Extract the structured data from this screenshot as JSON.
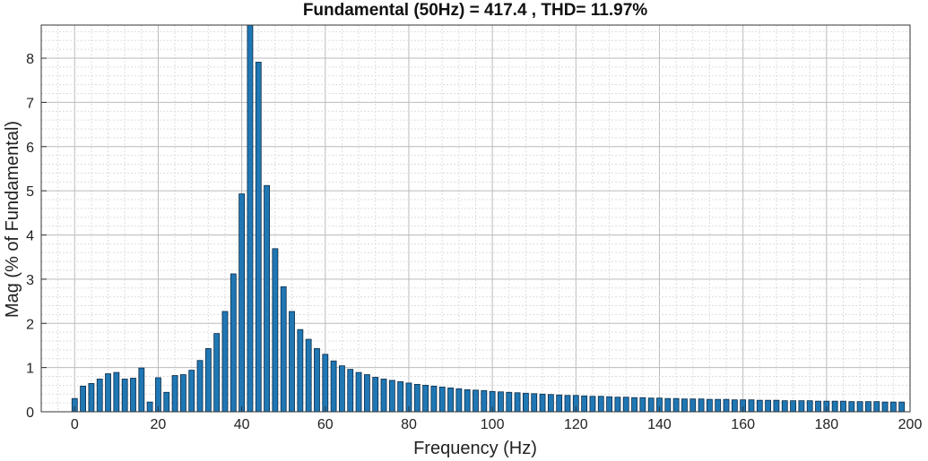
{
  "chart_data": {
    "type": "bar",
    "title": "Fundamental (50Hz) = 417.4 , THD= 11.97%",
    "xlabel": "Frequency (Hz)",
    "ylabel": "Mag (% of Fundamental)",
    "xlim": [
      -8,
      200
    ],
    "ylim": [
      0,
      8.75
    ],
    "xticks": [
      "0",
      "20",
      "40",
      "60",
      "80",
      "100",
      "120",
      "140",
      "160",
      "180",
      "200"
    ],
    "yticks": [
      "0",
      "1",
      "2",
      "3",
      "4",
      "5",
      "6",
      "7",
      "8"
    ],
    "grid": "major and minor, dotted",
    "bar_color": "#1f77b4",
    "x": [
      0,
      2,
      4,
      6,
      8,
      10,
      12,
      14,
      16,
      18,
      20,
      22,
      24,
      26,
      28,
      30,
      32,
      34,
      36,
      38,
      40,
      42,
      44,
      46,
      48,
      50,
      52,
      54,
      56,
      58,
      60,
      62,
      64,
      66,
      68,
      70,
      72,
      74,
      76,
      78,
      80,
      82,
      84,
      86,
      88,
      90,
      92,
      94,
      96,
      98,
      100,
      102,
      104,
      106,
      108,
      110,
      112,
      114,
      116,
      118,
      120,
      122,
      124,
      126,
      128,
      130,
      132,
      134,
      136,
      138,
      140,
      142,
      144,
      146,
      148,
      150,
      152,
      154,
      156,
      158,
      160,
      162,
      164,
      166,
      168,
      170,
      172,
      174,
      176,
      178,
      180,
      182,
      184,
      186,
      188,
      190,
      192,
      194,
      196,
      198
    ],
    "values": [
      0.3,
      0.58,
      0.64,
      0.74,
      0.86,
      0.89,
      0.74,
      0.76,
      0.99,
      0.22,
      0.77,
      0.44,
      0.82,
      0.84,
      0.94,
      1.16,
      1.43,
      1.77,
      2.27,
      3.12,
      4.93,
      8.75,
      7.91,
      5.12,
      3.69,
      2.83,
      2.27,
      1.86,
      1.64,
      1.43,
      1.3,
      1.15,
      1.04,
      0.96,
      0.89,
      0.84,
      0.78,
      0.74,
      0.71,
      0.68,
      0.65,
      0.62,
      0.6,
      0.58,
      0.56,
      0.54,
      0.52,
      0.5,
      0.49,
      0.48,
      0.46,
      0.45,
      0.44,
      0.43,
      0.42,
      0.41,
      0.4,
      0.39,
      0.38,
      0.37,
      0.37,
      0.36,
      0.35,
      0.35,
      0.34,
      0.33,
      0.33,
      0.32,
      0.32,
      0.31,
      0.31,
      0.3,
      0.3,
      0.29,
      0.29,
      0.29,
      0.28,
      0.28,
      0.28,
      0.27,
      0.27,
      0.27,
      0.26,
      0.26,
      0.26,
      0.25,
      0.25,
      0.25,
      0.25,
      0.24,
      0.24,
      0.24,
      0.24,
      0.23,
      0.23,
      0.23,
      0.23,
      0.22,
      0.22,
      0.22
    ]
  }
}
